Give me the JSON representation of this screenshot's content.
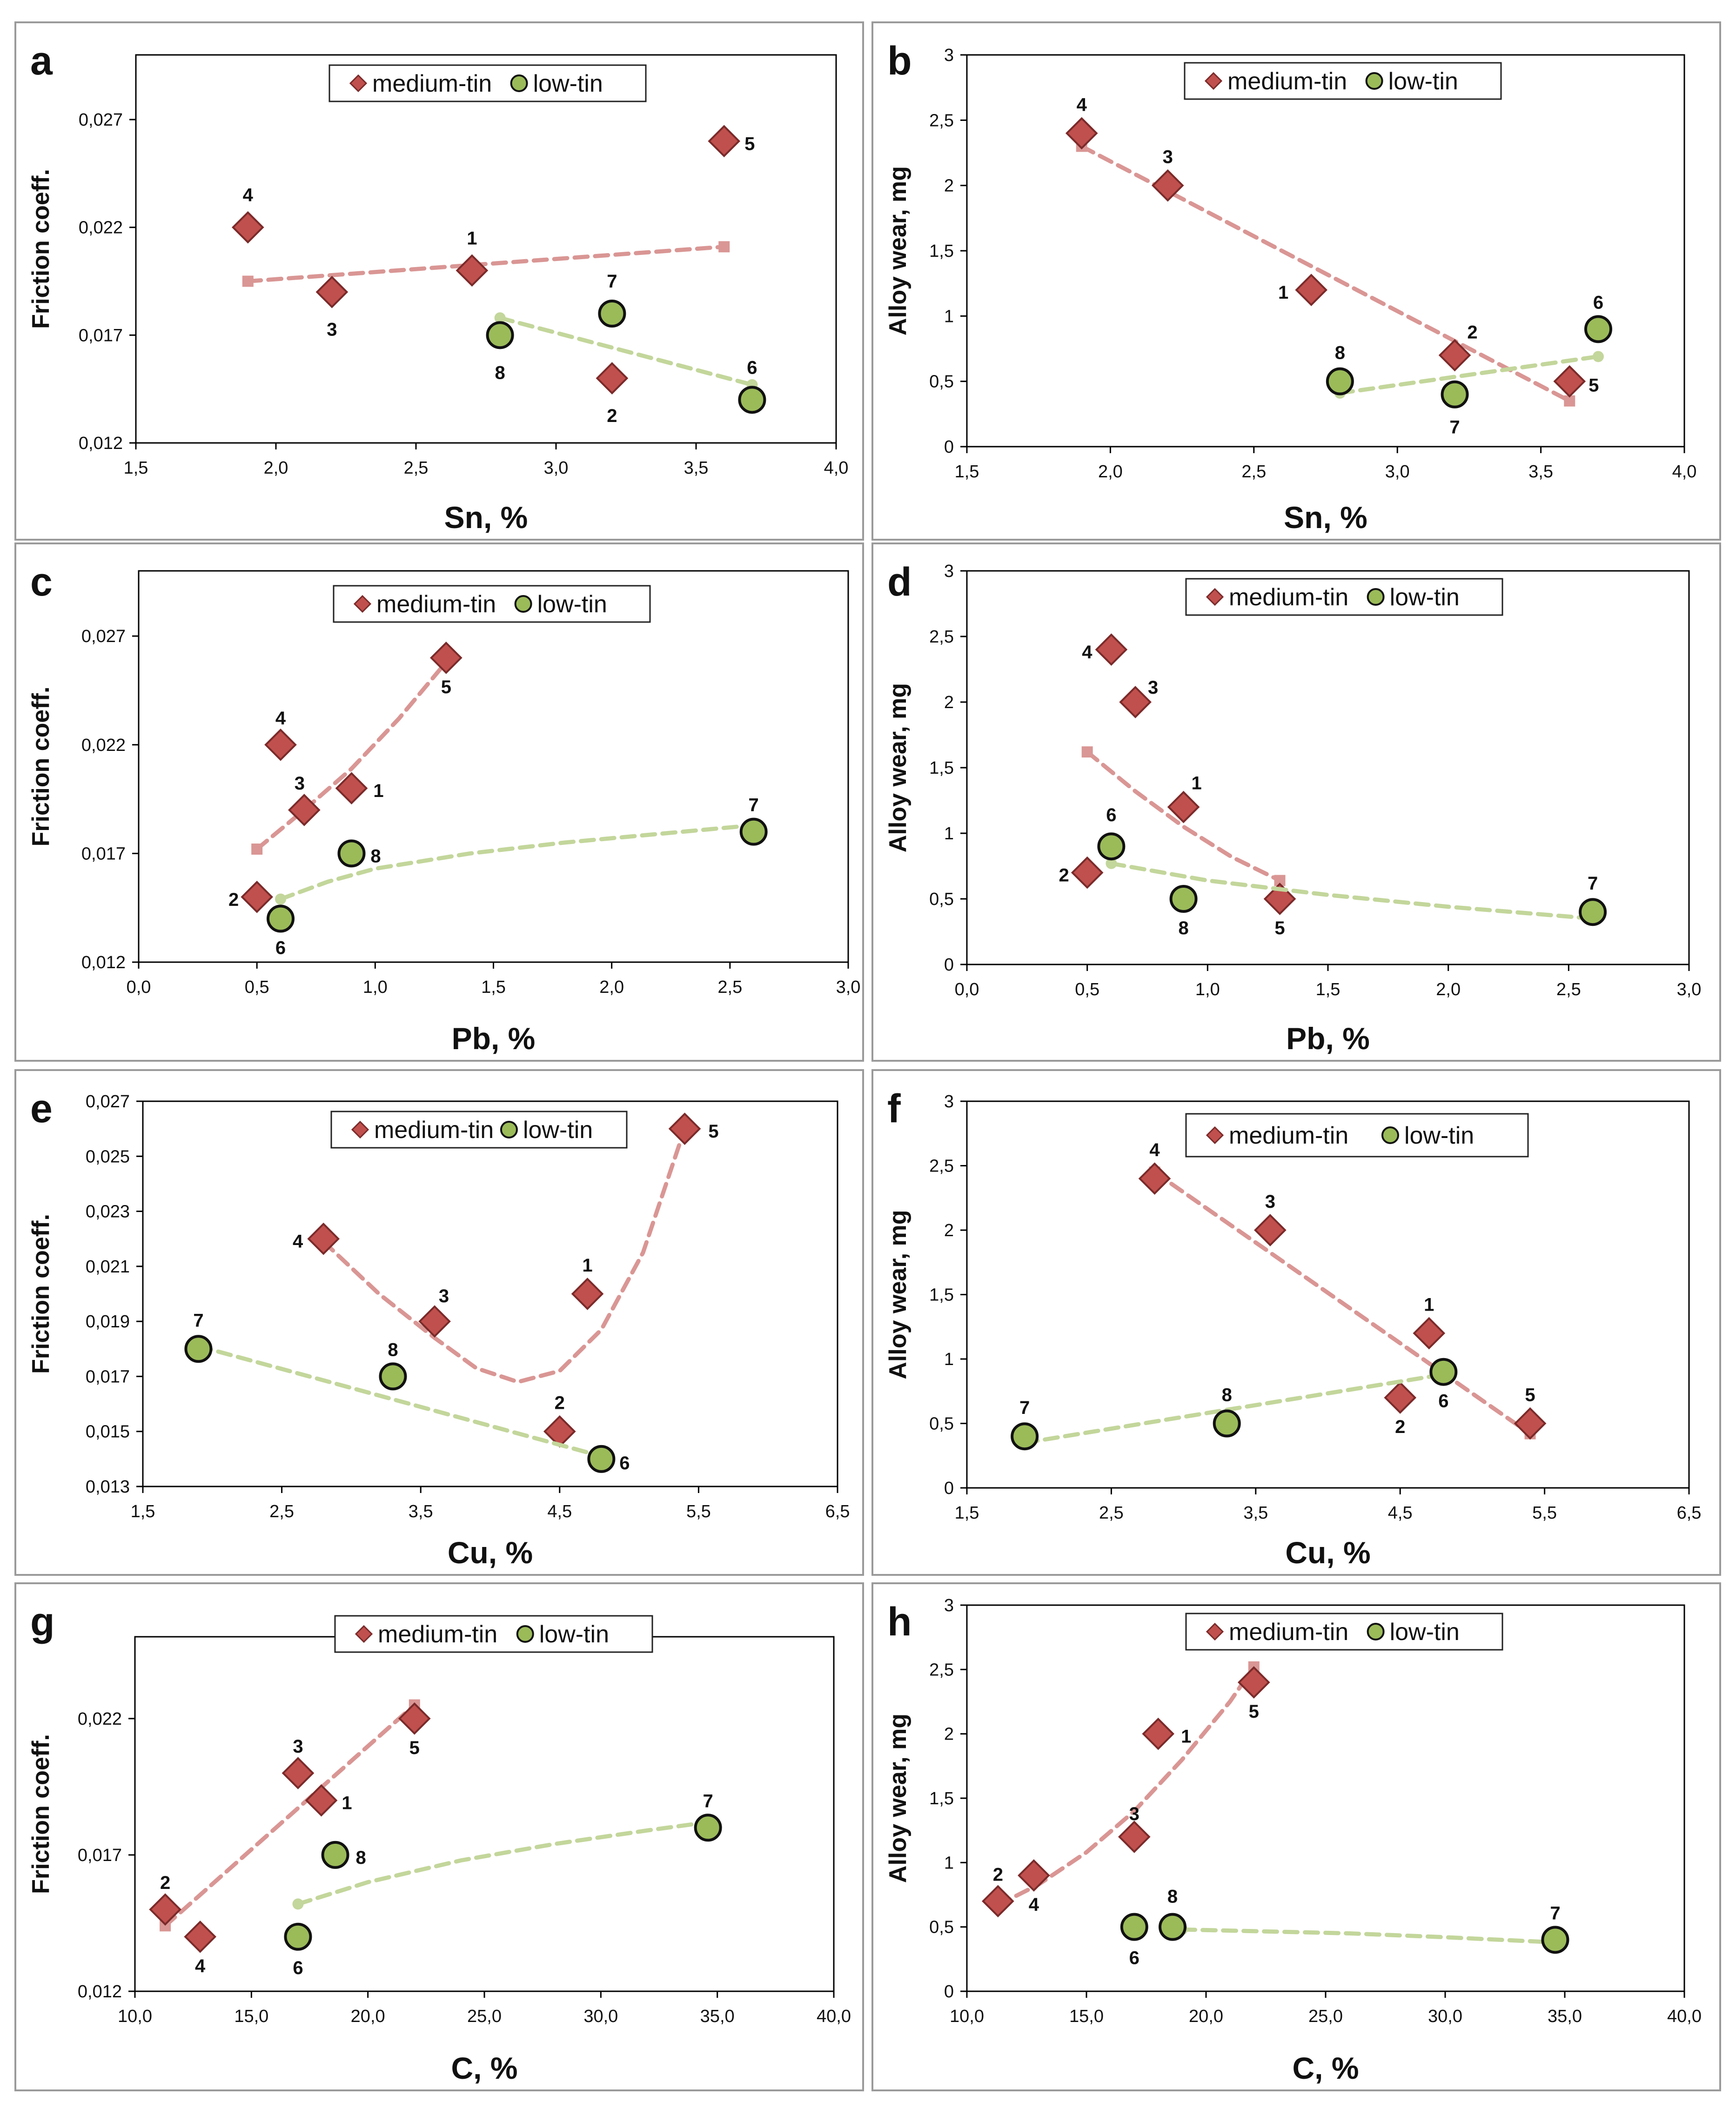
{
  "legend_labels": {
    "medium": "medium-tin",
    "low": "low-tin"
  },
  "colors": {
    "medium_marker": "#c0504d",
    "medium_edge": "#7a2a2a",
    "medium_trend": "#d99694",
    "low_marker": "#9bbb59",
    "low_edge": "#111111",
    "low_trend": "#c3d69b",
    "axis": "#000000"
  },
  "chart_data": [
    {
      "panel": "a",
      "type": "scatter",
      "xlabel": "Sn, %",
      "ylabel": "Friction coeff.",
      "xlim": [
        1.5,
        4.0
      ],
      "ylim": [
        0.012,
        0.03
      ],
      "xticks": [
        1.5,
        2.0,
        2.5,
        3.0,
        3.5,
        4.0
      ],
      "xtick_labels": [
        "1,5",
        "2,0",
        "2,5",
        "3,0",
        "3,5",
        "4,0"
      ],
      "yticks": [
        0.012,
        0.017,
        0.022,
        0.027
      ],
      "ytick_labels": [
        "0,012",
        "0,017",
        "0,022",
        "0,027"
      ],
      "series": [
        {
          "name": "medium-tin",
          "points": [
            {
              "label": "1",
              "x": 2.7,
              "y": 0.02
            },
            {
              "label": "2",
              "x": 3.2,
              "y": 0.015
            },
            {
              "label": "3",
              "x": 2.2,
              "y": 0.019
            },
            {
              "label": "4",
              "x": 1.9,
              "y": 0.022
            },
            {
              "label": "5",
              "x": 3.6,
              "y": 0.026
            }
          ],
          "trend": [
            [
              1.9,
              0.0195
            ],
            [
              3.6,
              0.0211
            ]
          ]
        },
        {
          "name": "low-tin",
          "points": [
            {
              "label": "6",
              "x": 3.7,
              "y": 0.014
            },
            {
              "label": "7",
              "x": 3.2,
              "y": 0.018
            },
            {
              "label": "8",
              "x": 2.8,
              "y": 0.017
            }
          ],
          "trend": [
            [
              2.8,
              0.0178
            ],
            [
              3.7,
              0.0147
            ]
          ]
        }
      ]
    },
    {
      "panel": "b",
      "type": "scatter",
      "xlabel": "Sn, %",
      "ylabel": "Alloy wear, mg",
      "xlim": [
        1.5,
        4.0
      ],
      "ylim": [
        0,
        3
      ],
      "xticks": [
        1.5,
        2.0,
        2.5,
        3.0,
        3.5,
        4.0
      ],
      "xtick_labels": [
        "1,5",
        "2,0",
        "2,5",
        "3,0",
        "3,5",
        "4,0"
      ],
      "yticks": [
        0,
        0.5,
        1,
        1.5,
        2,
        2.5,
        3
      ],
      "ytick_labels": [
        "0",
        "0,5",
        "1",
        "1,5",
        "2",
        "2,5",
        "3"
      ],
      "series": [
        {
          "name": "medium-tin",
          "points": [
            {
              "label": "1",
              "x": 2.7,
              "y": 1.2
            },
            {
              "label": "2",
              "x": 3.2,
              "y": 0.7
            },
            {
              "label": "3",
              "x": 2.2,
              "y": 2.0
            },
            {
              "label": "4",
              "x": 1.9,
              "y": 2.4
            },
            {
              "label": "5",
              "x": 3.6,
              "y": 0.5
            }
          ],
          "trend": [
            [
              1.9,
              2.3
            ],
            [
              3.6,
              0.35
            ]
          ]
        },
        {
          "name": "low-tin",
          "points": [
            {
              "label": "6",
              "x": 3.7,
              "y": 0.9
            },
            {
              "label": "7",
              "x": 3.2,
              "y": 0.4
            },
            {
              "label": "8",
              "x": 2.8,
              "y": 0.5
            }
          ],
          "trend": [
            [
              2.8,
              0.41
            ],
            [
              3.7,
              0.69
            ]
          ]
        }
      ]
    },
    {
      "panel": "c",
      "type": "scatter",
      "xlabel": "Pb, %",
      "ylabel": "Friction coeff.",
      "xlim": [
        0,
        3.0
      ],
      "ylim": [
        0.012,
        0.03
      ],
      "xticks": [
        0,
        0.5,
        1.0,
        1.5,
        2.0,
        2.5,
        3.0
      ],
      "xtick_labels": [
        "0,0",
        "0,5",
        "1,0",
        "1,5",
        "2,0",
        "2,5",
        "3,0"
      ],
      "yticks": [
        0.012,
        0.017,
        0.022,
        0.027
      ],
      "ytick_labels": [
        "0,012",
        "0,017",
        "0,022",
        "0,027"
      ],
      "series": [
        {
          "name": "medium-tin",
          "points": [
            {
              "label": "1",
              "x": 0.9,
              "y": 0.02
            },
            {
              "label": "2",
              "x": 0.5,
              "y": 0.015
            },
            {
              "label": "3",
              "x": 0.7,
              "y": 0.019
            },
            {
              "label": "4",
              "x": 0.6,
              "y": 0.022
            },
            {
              "label": "5",
              "x": 1.3,
              "y": 0.026
            }
          ],
          "trend": [
            [
              0.5,
              0.0172
            ],
            [
              0.7,
              0.019
            ],
            [
              0.9,
              0.0209
            ],
            [
              1.1,
              0.0232
            ],
            [
              1.3,
              0.0258
            ]
          ]
        },
        {
          "name": "low-tin",
          "points": [
            {
              "label": "6",
              "x": 0.6,
              "y": 0.014
            },
            {
              "label": "7",
              "x": 2.6,
              "y": 0.018
            },
            {
              "label": "8",
              "x": 0.9,
              "y": 0.017
            }
          ],
          "trend": [
            [
              0.6,
              0.0149
            ],
            [
              0.8,
              0.0157
            ],
            [
              1.0,
              0.0163
            ],
            [
              1.4,
              0.017
            ],
            [
              1.8,
              0.0175
            ],
            [
              2.2,
              0.0179
            ],
            [
              2.6,
              0.0183
            ]
          ]
        }
      ]
    },
    {
      "panel": "d",
      "type": "scatter",
      "xlabel": "Pb, %",
      "ylabel": "Alloy wear, mg",
      "xlim": [
        0,
        3.0
      ],
      "ylim": [
        0,
        3
      ],
      "xticks": [
        0,
        0.5,
        1.0,
        1.5,
        2.0,
        2.5,
        3.0
      ],
      "xtick_labels": [
        "0,0",
        "0,5",
        "1,0",
        "1,5",
        "2,0",
        "2,5",
        "3,0"
      ],
      "yticks": [
        0,
        0.5,
        1,
        1.5,
        2,
        2.5,
        3
      ],
      "ytick_labels": [
        "0",
        "0,5",
        "1",
        "1,5",
        "2",
        "2,5",
        "3"
      ],
      "series": [
        {
          "name": "medium-tin",
          "points": [
            {
              "label": "1",
              "x": 0.9,
              "y": 1.2
            },
            {
              "label": "2",
              "x": 0.5,
              "y": 0.7
            },
            {
              "label": "3",
              "x": 0.7,
              "y": 2.0
            },
            {
              "label": "4",
              "x": 0.6,
              "y": 2.4
            },
            {
              "label": "5",
              "x": 1.3,
              "y": 0.5
            }
          ],
          "trend": [
            [
              0.5,
              1.62
            ],
            [
              0.7,
              1.32
            ],
            [
              0.9,
              1.05
            ],
            [
              1.1,
              0.82
            ],
            [
              1.3,
              0.64
            ]
          ]
        },
        {
          "name": "low-tin",
          "points": [
            {
              "label": "6",
              "x": 0.6,
              "y": 0.9
            },
            {
              "label": "7",
              "x": 2.6,
              "y": 0.4
            },
            {
              "label": "8",
              "x": 0.9,
              "y": 0.5
            }
          ],
          "trend": [
            [
              0.6,
              0.77
            ],
            [
              1.0,
              0.64
            ],
            [
              1.5,
              0.53
            ],
            [
              2.0,
              0.44
            ],
            [
              2.6,
              0.35
            ]
          ]
        }
      ]
    },
    {
      "panel": "e",
      "type": "scatter",
      "xlabel": "Cu, %",
      "ylabel": "Friction coeff.",
      "xlim": [
        1.5,
        6.5
      ],
      "ylim": [
        0.013,
        0.027
      ],
      "xticks": [
        1.5,
        2.5,
        3.5,
        4.5,
        5.5,
        6.5
      ],
      "xtick_labels": [
        "1,5",
        "2,5",
        "3,5",
        "4,5",
        "5,5",
        "6,5"
      ],
      "yticks": [
        0.013,
        0.015,
        0.017,
        0.019,
        0.021,
        0.023,
        0.025,
        0.027
      ],
      "ytick_labels": [
        "0,013",
        "0,015",
        "0,017",
        "0,019",
        "0,021",
        "0,023",
        "0,025",
        "0,027"
      ],
      "series": [
        {
          "name": "medium-tin",
          "points": [
            {
              "label": "1",
              "x": 4.7,
              "y": 0.02
            },
            {
              "label": "2",
              "x": 4.5,
              "y": 0.015
            },
            {
              "label": "3",
              "x": 3.6,
              "y": 0.019
            },
            {
              "label": "4",
              "x": 2.8,
              "y": 0.022
            },
            {
              "label": "5",
              "x": 5.4,
              "y": 0.026
            }
          ],
          "trend": [
            [
              2.8,
              0.0219
            ],
            [
              3.2,
              0.02
            ],
            [
              3.6,
              0.0184
            ],
            [
              3.9,
              0.0173
            ],
            [
              4.2,
              0.0168
            ],
            [
              4.5,
              0.0172
            ],
            [
              4.8,
              0.0187
            ],
            [
              5.1,
              0.0215
            ],
            [
              5.4,
              0.026
            ]
          ]
        },
        {
          "name": "low-tin",
          "points": [
            {
              "label": "6",
              "x": 4.8,
              "y": 0.014
            },
            {
              "label": "7",
              "x": 1.9,
              "y": 0.018
            },
            {
              "label": "8",
              "x": 3.3,
              "y": 0.017
            }
          ],
          "trend": [
            [
              1.9,
              0.0181
            ],
            [
              4.8,
              0.0141
            ]
          ]
        }
      ]
    },
    {
      "panel": "f",
      "type": "scatter",
      "xlabel": "Cu, %",
      "ylabel": "Alloy wear, mg",
      "xlim": [
        1.5,
        6.5
      ],
      "ylim": [
        0,
        3
      ],
      "xticks": [
        1.5,
        2.5,
        3.5,
        4.5,
        5.5,
        6.5
      ],
      "xtick_labels": [
        "1,5",
        "2,5",
        "3,5",
        "4,5",
        "5,5",
        "6,5"
      ],
      "yticks": [
        0,
        0.5,
        1,
        1.5,
        2,
        2.5,
        3
      ],
      "ytick_labels": [
        "0",
        "0,5",
        "1",
        "1,5",
        "2",
        "2,5",
        "3"
      ],
      "series": [
        {
          "name": "medium-tin",
          "points": [
            {
              "label": "1",
              "x": 4.7,
              "y": 1.2
            },
            {
              "label": "2",
              "x": 4.5,
              "y": 0.7
            },
            {
              "label": "3",
              "x": 3.6,
              "y": 2.0
            },
            {
              "label": "4",
              "x": 2.8,
              "y": 2.4
            },
            {
              "label": "5",
              "x": 5.4,
              "y": 0.5
            }
          ],
          "trend": [
            [
              2.8,
              2.45
            ],
            [
              5.4,
              0.42
            ]
          ]
        },
        {
          "name": "low-tin",
          "points": [
            {
              "label": "6",
              "x": 4.8,
              "y": 0.9
            },
            {
              "label": "7",
              "x": 1.9,
              "y": 0.4
            },
            {
              "label": "8",
              "x": 3.3,
              "y": 0.5
            }
          ],
          "trend": [
            [
              1.9,
              0.35
            ],
            [
              4.8,
              0.88
            ]
          ]
        }
      ]
    },
    {
      "panel": "g",
      "type": "scatter",
      "xlabel": "C, %",
      "ylabel": "Friction coeff.",
      "xlim": [
        10,
        40
      ],
      "ylim": [
        0.012,
        0.025
      ],
      "xticks": [
        10,
        15,
        20,
        25,
        30,
        35,
        40
      ],
      "xtick_labels": [
        "10,0",
        "15,0",
        "20,0",
        "25,0",
        "30,0",
        "35,0",
        "40,0"
      ],
      "yticks": [
        0.012,
        0.017,
        0.022
      ],
      "ytick_labels": [
        "0,012",
        "0,017",
        "0,022"
      ],
      "series": [
        {
          "name": "medium-tin",
          "points": [
            {
              "label": "1",
              "x": 18.0,
              "y": 0.019
            },
            {
              "label": "2",
              "x": 11.3,
              "y": 0.015
            },
            {
              "label": "3",
              "x": 17.0,
              "y": 0.02
            },
            {
              "label": "4",
              "x": 12.8,
              "y": 0.014
            },
            {
              "label": "5",
              "x": 22.0,
              "y": 0.022
            }
          ],
          "trend": [
            [
              11.3,
              0.0144
            ],
            [
              22.0,
              0.0225
            ]
          ]
        },
        {
          "name": "low-tin",
          "points": [
            {
              "label": "6",
              "x": 17.0,
              "y": 0.014
            },
            {
              "label": "7",
              "x": 34.6,
              "y": 0.018
            },
            {
              "label": "8",
              "x": 18.6,
              "y": 0.017
            }
          ],
          "trend": [
            [
              17.0,
              0.0152
            ],
            [
              20,
              0.016
            ],
            [
              24,
              0.0168
            ],
            [
              28,
              0.0174
            ],
            [
              32,
              0.0179
            ],
            [
              34.6,
              0.0182
            ]
          ]
        }
      ]
    },
    {
      "panel": "h",
      "type": "scatter",
      "xlabel": "C, %",
      "ylabel": "Alloy wear, mg",
      "xlim": [
        10,
        40
      ],
      "ylim": [
        0,
        3
      ],
      "xticks": [
        10,
        15,
        20,
        25,
        30,
        35,
        40
      ],
      "xtick_labels": [
        "10,0",
        "15,0",
        "20,0",
        "25,0",
        "30,0",
        "35,0",
        "40,0"
      ],
      "yticks": [
        0,
        0.5,
        1,
        1.5,
        2,
        2.5,
        3
      ],
      "ytick_labels": [
        "0",
        "0,5",
        "1",
        "1,5",
        "2",
        "2,5",
        "3"
      ],
      "series": [
        {
          "name": "medium-tin",
          "points": [
            {
              "label": "1",
              "x": 18.0,
              "y": 2.0
            },
            {
              "label": "2",
              "x": 11.3,
              "y": 0.7
            },
            {
              "label": "3",
              "x": 17.0,
              "y": 1.2
            },
            {
              "label": "4",
              "x": 12.8,
              "y": 0.9
            },
            {
              "label": "5",
              "x": 22.0,
              "y": 2.4
            }
          ],
          "trend": [
            [
              11.3,
              0.67
            ],
            [
              13,
              0.83
            ],
            [
              15,
              1.08
            ],
            [
              17,
              1.4
            ],
            [
              19,
              1.8
            ],
            [
              21,
              2.25
            ],
            [
              22.0,
              2.52
            ]
          ]
        },
        {
          "name": "low-tin",
          "points": [
            {
              "label": "6",
              "x": 17.0,
              "y": 0.5
            },
            {
              "label": "7",
              "x": 34.6,
              "y": 0.4
            },
            {
              "label": "8",
              "x": 18.6,
              "y": 0.5
            }
          ],
          "trend": [
            [
              19.0,
              0.48
            ],
            [
              26,
              0.45
            ],
            [
              30,
              0.42
            ],
            [
              34.6,
              0.38
            ]
          ]
        }
      ]
    }
  ]
}
